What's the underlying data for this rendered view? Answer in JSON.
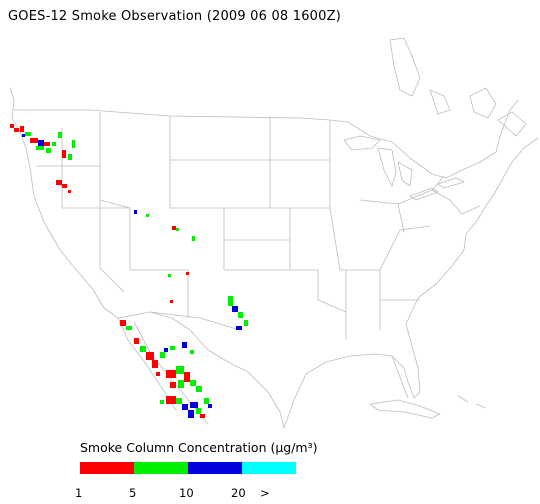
{
  "title": "GOES-12 Smoke Observation (2009 06 08  1600Z)",
  "legend": {
    "title": "Smoke Column Concentration (µg/m³)",
    "colors": [
      "#ff0000",
      "#00ee00",
      "#0000dd",
      "#00ffff"
    ],
    "ticks": [
      "1",
      "5",
      "10",
      "20",
      ">"
    ]
  }
}
